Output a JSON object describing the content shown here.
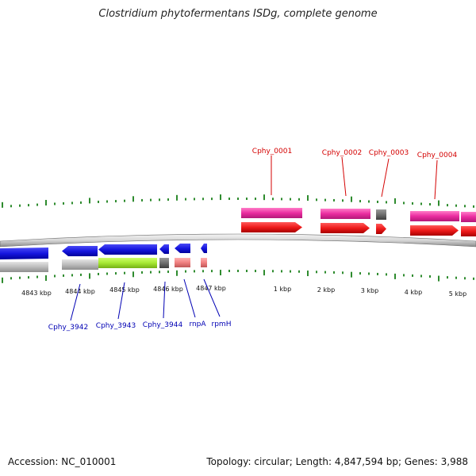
{
  "title": "Clostridium phytofermentans ISDg, complete genome",
  "footer": {
    "accession": "Accession: NC_010001",
    "summary": "Topology: circular; Length: 4,847,594 bp; Genes: 3,988"
  },
  "colors": {
    "forward_cds": "#e81818",
    "forward_gene": "#e8259e",
    "reverse_cds": "#1414dc",
    "reverse_gene": "#bdbdbd",
    "rna": "#f08080",
    "other": "#7a7a7a",
    "highlight": "#a6e833",
    "ticks": "#2e8b2e",
    "forward_label": "#d40000",
    "reverse_label": "#0000b4"
  },
  "scale_labels": [
    "4843 kbp",
    "4844 kbp",
    "4845 kbp",
    "4846 kbp",
    "4847 kbp",
    "1 kbp",
    "2 kbp",
    "3 kbp",
    "4 kbp",
    "5 kbp"
  ],
  "forward_genes": [
    {
      "label": "Cphy_0001"
    },
    {
      "label": "Cphy_0002"
    },
    {
      "label": "Cphy_0003"
    },
    {
      "label": "Cphy_0004"
    }
  ],
  "reverse_genes": [
    {
      "label": "Cphy_3942"
    },
    {
      "label": "Cphy_3943"
    },
    {
      "label": "Cphy_3944"
    },
    {
      "label": "rnpA"
    },
    {
      "label": "rpmH"
    }
  ]
}
